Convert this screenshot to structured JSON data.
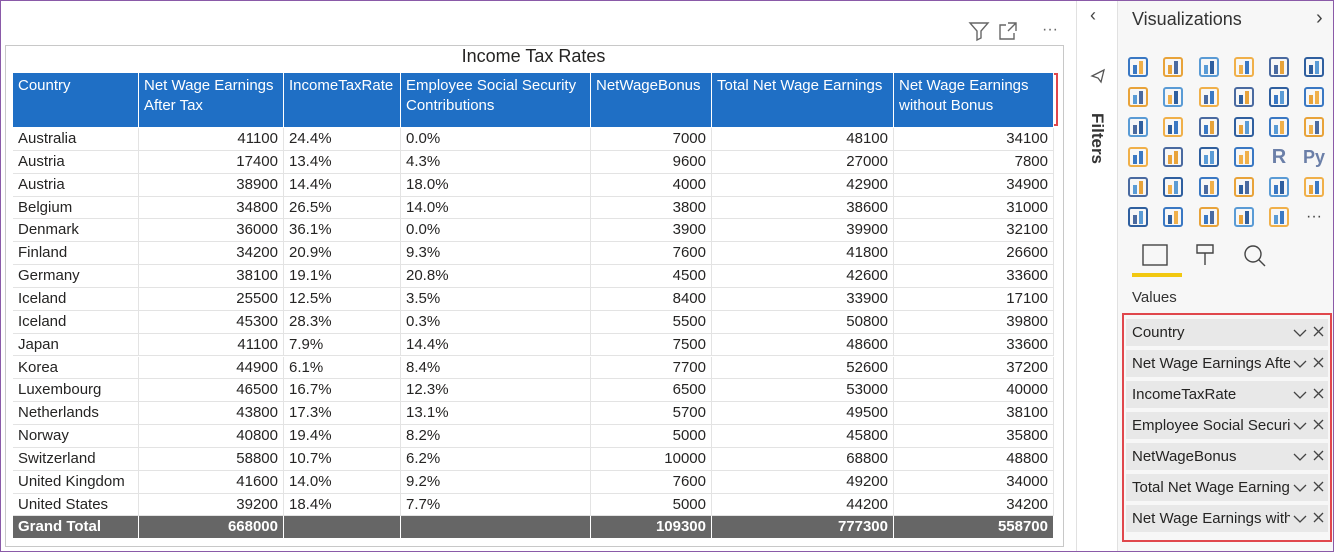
{
  "visual": {
    "title": "Income Tax Rates",
    "more": "···",
    "table": {
      "columns": [
        "Country",
        "Net Wage Earnings After Tax",
        "IncomeTaxRate",
        "Employee Social Security Contributions",
        "NetWageBonus",
        "Total Net Wage Earnings",
        "Net Wage Earnings without Bonus"
      ],
      "rows": [
        [
          "Australia",
          "41100",
          "24.4%",
          "0.0%",
          "7000",
          "48100",
          "34100"
        ],
        [
          "Austria",
          "17400",
          "13.4%",
          "4.3%",
          "9600",
          "27000",
          "7800"
        ],
        [
          "Austria",
          "38900",
          "14.4%",
          "18.0%",
          "4000",
          "42900",
          "34900"
        ],
        [
          "Belgium",
          "34800",
          "26.5%",
          "14.0%",
          "3800",
          "38600",
          "31000"
        ],
        [
          "Denmark",
          "36000",
          "36.1%",
          "0.0%",
          "3900",
          "39900",
          "32100"
        ],
        [
          "Finland",
          "34200",
          "20.9%",
          "9.3%",
          "7600",
          "41800",
          "26600"
        ],
        [
          "Germany",
          "38100",
          "19.1%",
          "20.8%",
          "4500",
          "42600",
          "33600"
        ],
        [
          "Iceland",
          "25500",
          "12.5%",
          "3.5%",
          "8400",
          "33900",
          "17100"
        ],
        [
          "Iceland",
          "45300",
          "28.3%",
          "0.3%",
          "5500",
          "50800",
          "39800"
        ],
        [
          "Japan",
          "41100",
          "7.9%",
          "14.4%",
          "7500",
          "48600",
          "33600"
        ],
        [
          "Korea",
          "44900",
          "6.1%",
          "8.4%",
          "7700",
          "52600",
          "37200"
        ],
        [
          "Luxembourg",
          "46500",
          "16.7%",
          "12.3%",
          "6500",
          "53000",
          "40000"
        ],
        [
          "Netherlands",
          "43800",
          "17.3%",
          "13.1%",
          "5700",
          "49500",
          "38100"
        ],
        [
          "Norway",
          "40800",
          "19.4%",
          "8.2%",
          "5000",
          "45800",
          "35800"
        ],
        [
          "Switzerland",
          "58800",
          "10.7%",
          "6.2%",
          "10000",
          "68800",
          "48800"
        ],
        [
          "United Kingdom",
          "41600",
          "14.0%",
          "9.2%",
          "7600",
          "49200",
          "34000"
        ],
        [
          "United States",
          "39200",
          "18.4%",
          "7.7%",
          "5000",
          "44200",
          "34200"
        ]
      ],
      "total": [
        "Grand Total",
        "668000",
        "",
        "",
        "109300",
        "777300",
        "558700"
      ]
    }
  },
  "filters": {
    "title": "Filters"
  },
  "visualizations": {
    "title": "Visualizations",
    "icon_labels": [
      "R",
      "Py"
    ],
    "more": "···",
    "values_label": "Values",
    "fields": [
      "Country",
      "Net Wage Earnings Afte",
      "IncomeTaxRate",
      "Employee Social Securit",
      "NetWageBonus",
      "Total Net Wage Earning",
      "Net Wage Earnings with"
    ]
  }
}
